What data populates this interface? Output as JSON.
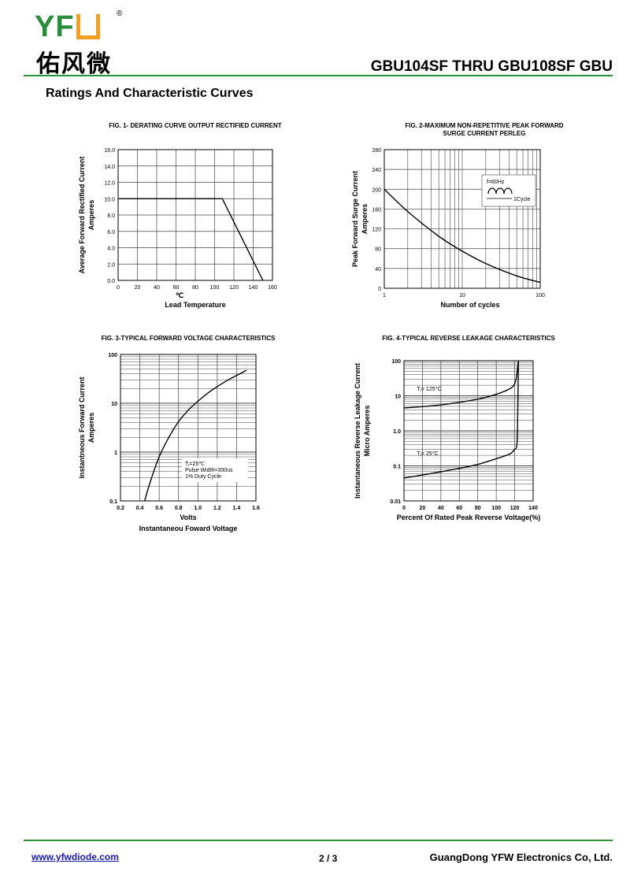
{
  "header": {
    "logo": {
      "latin": "YFW",
      "registered": "®",
      "chinese": "佑风微"
    },
    "doc_title": "GBU104SF THRU GBU108SF GBU",
    "rule_color": "#2b8f3d"
  },
  "section_title": "Ratings And  Characteristic Curves",
  "chart_data": [
    {
      "type": "line",
      "title": "FIG. 1- DERATING CURVE OUTPUT RECTIFIED CURRENT",
      "xlabel": "Lead Temperature",
      "xunit": "℃",
      "ylabel": "Average Forward Rectified Current",
      "ylabel2": "Amperes",
      "xlim": [
        0,
        160
      ],
      "ylim": [
        0,
        16
      ],
      "xticks": [
        "0",
        "20",
        "40",
        "60",
        "80",
        "100",
        "120",
        "140",
        "160"
      ],
      "yticks": [
        "0.0",
        "2.0",
        "4.0",
        "6.0",
        "8.0",
        "10.0",
        "12.0",
        "14.0",
        "16.0"
      ],
      "series": [
        {
          "x": [
            0,
            108,
            150
          ],
          "y": [
            10,
            10,
            0
          ]
        }
      ]
    },
    {
      "type": "line",
      "title": "FIG. 2-MAXIMUM NON-REPETITIVE PEAK FORWARD",
      "title2": "SURGE CURRENT PERLEG",
      "xlabel": "Number of cycles",
      "ylabel": "Peak Forward Surge Current",
      "ylabel2": "Amperes",
      "xscale": "log",
      "xlim": [
        1,
        100
      ],
      "ylim": [
        0,
        280
      ],
      "xticks": [
        "1",
        "10",
        "100"
      ],
      "yticks": [
        "0",
        "40",
        "80",
        "120",
        "160",
        "200",
        "240",
        "280"
      ],
      "inset": {
        "freq": "f=60Hz",
        "cycle": "1Cycle"
      },
      "series": [
        {
          "x": [
            1,
            2,
            5,
            10,
            20,
            50,
            100
          ],
          "y": [
            200,
            155,
            105,
            75,
            50,
            25,
            12
          ]
        }
      ]
    },
    {
      "type": "line",
      "title": "FIG. 3-TYPICAL FORWARD VOLTAGE CHARACTERISTICS",
      "xlabel": "Volts",
      "xlabel2": "Instantaneou Foward Voltage",
      "ylabel": "Instantneous Forward Current",
      "ylabel2": "Amperes",
      "yscale": "log",
      "xlim": [
        0.2,
        1.6
      ],
      "ylim": [
        0.1,
        100
      ],
      "xticks": [
        "0.2",
        "0.4",
        "0.6",
        "0.8",
        "1.0",
        "1.2",
        "1.4",
        "1.6"
      ],
      "yticks": [
        "0.1",
        "1",
        "10",
        "100"
      ],
      "note": [
        "Tⱼ=25℃",
        "Pulse Width=300us",
        "1% Duty Cycle"
      ],
      "series": [
        {
          "x": [
            0.45,
            0.5,
            0.6,
            0.7,
            0.8,
            0.9,
            1.0,
            1.1,
            1.2,
            1.3,
            1.4,
            1.5
          ],
          "y": [
            0.1,
            0.22,
            0.8,
            2.0,
            4.2,
            7.2,
            11,
            16,
            22,
            29,
            37,
            47
          ]
        }
      ]
    },
    {
      "type": "line",
      "title": "FIG. 4-TYPICAL REVERSE LEAKAGE CHARACTERISTICS",
      "xlabel": "Percent Of Rated Peak Reverse Voltage(%)",
      "ylabel": "Instantaneous Reverse Leakage Current",
      "ylabel2": "Micro Amperes",
      "yscale": "log",
      "xlim": [
        0,
        140
      ],
      "ylim": [
        0.01,
        100
      ],
      "xticks": [
        "0",
        "20",
        "40",
        "60",
        "80",
        "100",
        "120",
        "140"
      ],
      "yticks": [
        "0.01",
        "0.1",
        "1.0",
        "10",
        "100"
      ],
      "series": [
        {
          "name": "Tⱼ= 125°C",
          "x": [
            0,
            20,
            40,
            60,
            80,
            100,
            115,
            120,
            122,
            123,
            124
          ],
          "y": [
            4.5,
            4.9,
            5.5,
            6.5,
            8.0,
            11,
            16,
            22,
            35,
            60,
            100
          ]
        },
        {
          "name": "Tⱼ= 25°C",
          "x": [
            0,
            20,
            40,
            60,
            80,
            100,
            115,
            120,
            122,
            123,
            124
          ],
          "y": [
            0.045,
            0.055,
            0.068,
            0.085,
            0.11,
            0.16,
            0.22,
            0.3,
            0.35,
            1,
            100
          ]
        }
      ]
    }
  ],
  "footer": {
    "website": "www.yfwdiode.com",
    "page": "2 / 3",
    "company": "GuangDong YFW Electronics Co, Ltd."
  }
}
